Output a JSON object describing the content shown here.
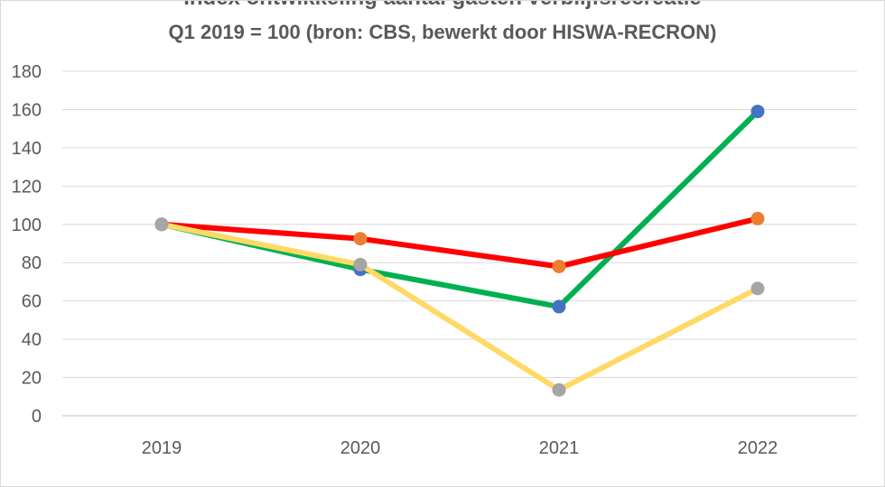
{
  "chart_data": {
    "type": "line",
    "title": "Index ontwikkeling aantal gasten verblijfsrecreatie",
    "subtitle": "Q1  2019 = 100 (bron: CBS, bewerkt door HISWA-RECRON)",
    "xlabel": "",
    "ylabel": "",
    "categories": [
      "2019",
      "2020",
      "2021",
      "2022"
    ],
    "ylim": [
      0,
      180
    ],
    "yticks": [
      "0",
      "20",
      "40",
      "60",
      "80",
      "100",
      "120",
      "140",
      "160",
      "180"
    ],
    "grid": true,
    "series": [
      {
        "line_color": "#00b050",
        "marker_color": "#4472c4",
        "values": [
          100,
          76.5,
          57,
          159
        ]
      },
      {
        "line_color": "#ff0000",
        "marker_color": "#ed7d31",
        "values": [
          100,
          92.5,
          78,
          103
        ]
      },
      {
        "line_color": "#ffd966",
        "marker_color": "#a5a5a5",
        "values": [
          100,
          79,
          13.5,
          66.5
        ]
      }
    ]
  }
}
